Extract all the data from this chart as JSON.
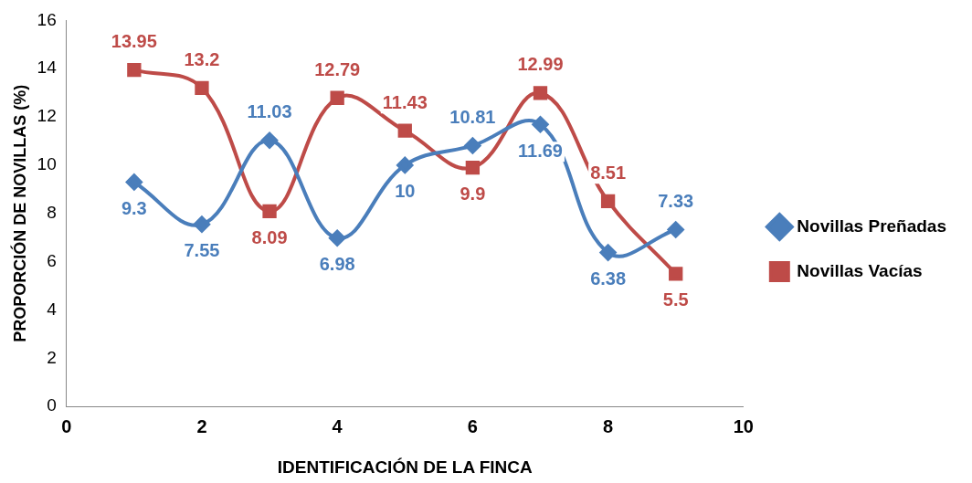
{
  "chart_data": {
    "type": "line",
    "xlabel": "IDENTIFICACIÓN DE LA FINCA",
    "ylabel": "PROPORCIÓN DE NOVILLAS (%)",
    "x": [
      1,
      2,
      3,
      4,
      5,
      6,
      7,
      8,
      9
    ],
    "series": [
      {
        "name": "Novillas Preñadas",
        "color": "#4a7ebb",
        "marker": "diamond",
        "values": [
          9.3,
          7.55,
          11.03,
          6.98,
          10,
          10.81,
          11.69,
          6.38,
          7.33
        ]
      },
      {
        "name": "Novillas Vacías",
        "color": "#be4b48",
        "marker": "square",
        "values": [
          13.95,
          13.2,
          8.09,
          12.79,
          11.43,
          9.9,
          12.99,
          8.51,
          5.5
        ]
      }
    ],
    "xlim": [
      0,
      10
    ],
    "xticks": [
      0,
      2,
      4,
      6,
      8,
      10
    ],
    "ylim": [
      0,
      16
    ],
    "yticks": [
      0,
      2,
      4,
      6,
      8,
      10,
      12,
      14,
      16
    ],
    "grid": false,
    "legend": "right",
    "data_labels": true
  }
}
